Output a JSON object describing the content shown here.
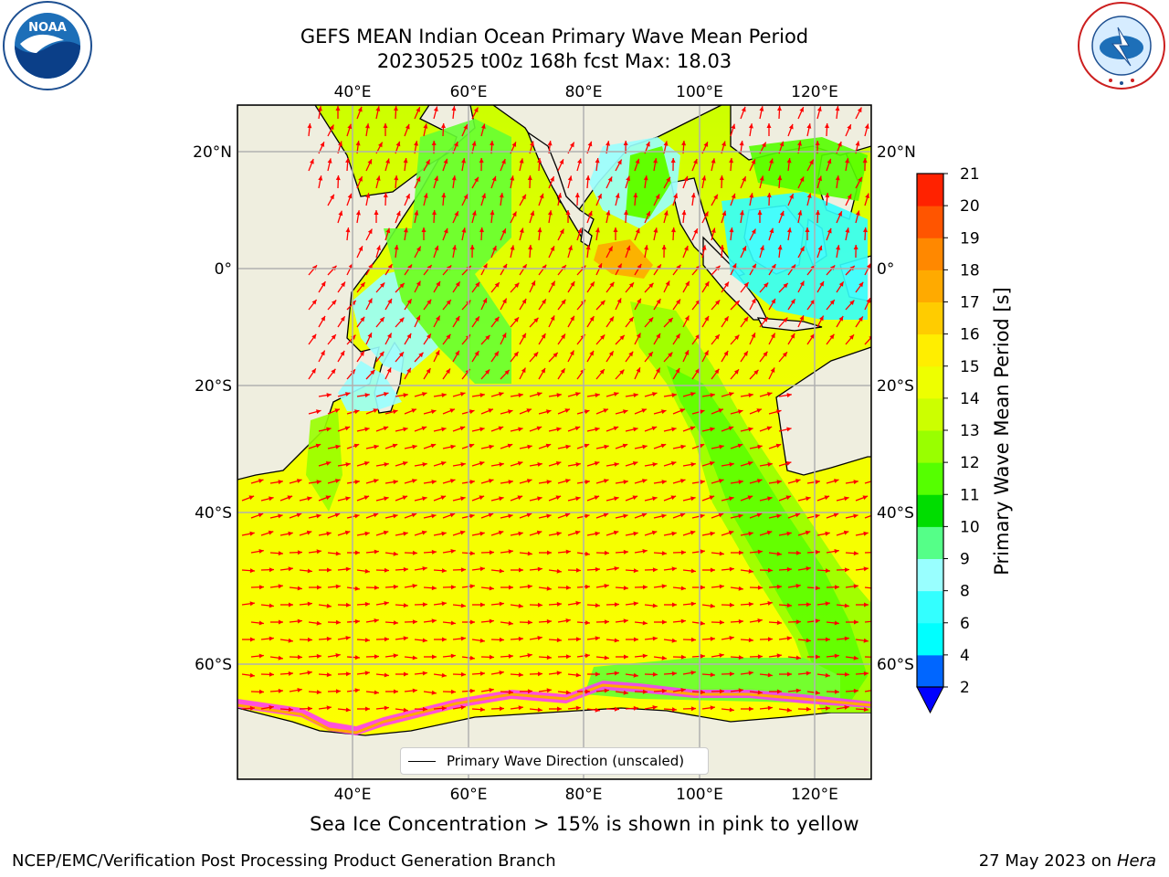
{
  "title": {
    "line1": "GEFS MEAN Indian Ocean Primary Wave Mean Period",
    "line2": "20230525 t00z 168h fcst   Max: 18.03"
  },
  "logos": {
    "noaa_text": "NOAA",
    "noaa_ring": "NATIONAL OCEANIC AND ATMOSPHERIC ADMINISTRATION · U.S. DEPARTMENT OF COMMERCE",
    "nws_ring": "NATIONAL WEATHER SERVICE"
  },
  "map": {
    "lon_labels": [
      "40°E",
      "60°E",
      "80°E",
      "100°E",
      "120°E"
    ],
    "lat_labels": [
      "20°N",
      "0°",
      "20°S",
      "40°S",
      "60°S"
    ],
    "legend_label": "Primary Wave Direction (unscaled)",
    "colors": {
      "land": "#efeedf",
      "ice": "#ff33ff",
      "arrow": "#ff0000"
    }
  },
  "colorbar": {
    "title": "Primary Wave Mean Period [s]",
    "ticks": [
      "2",
      "4",
      "6",
      "8",
      "9",
      "10",
      "11",
      "12",
      "13",
      "14",
      "15",
      "16",
      "17",
      "18",
      "19",
      "20",
      "21"
    ],
    "colors": [
      "#0066ff",
      "#00ffff",
      "#33ffff",
      "#99ffff",
      "#55ff88",
      "#00dd00",
      "#55ff00",
      "#99ff00",
      "#ccff00",
      "#eeff00",
      "#ffee00",
      "#ffcc00",
      "#ffaa00",
      "#ff8800",
      "#ff5500",
      "#ff2200"
    ],
    "extend_color": "#0000ff"
  },
  "note": "Sea Ice Concentration > 15% is shown in pink to yellow",
  "footer": {
    "left": "NCEP/EMC/Verification Post Processing Product Generation Branch",
    "right_date": "27 May 2023 on",
    "right_machine": "Hera"
  }
}
